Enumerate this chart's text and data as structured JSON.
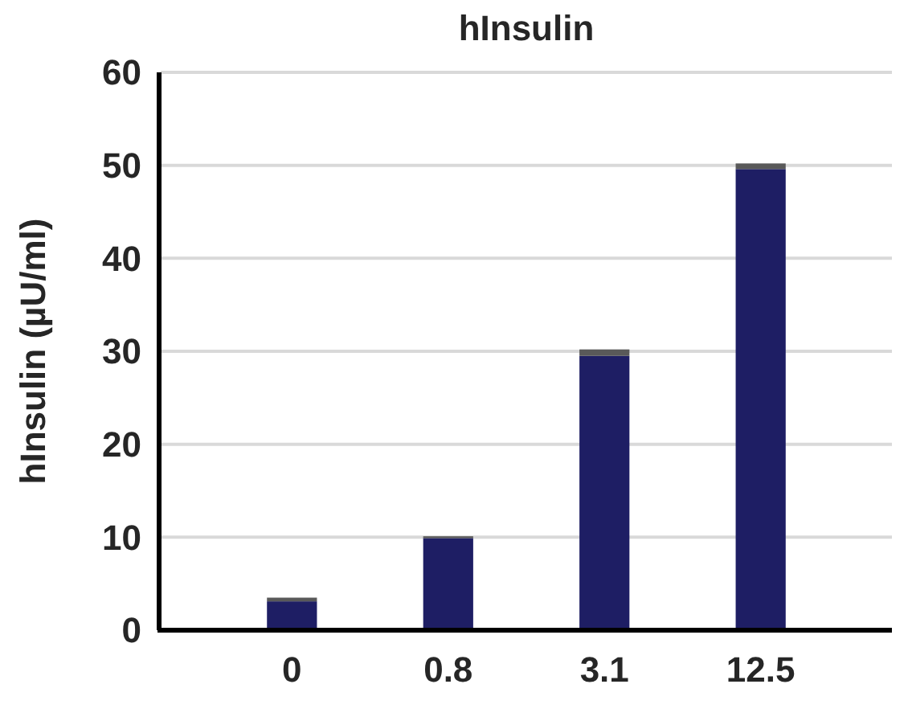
{
  "chart_data": {
    "type": "bar",
    "title": "hInsulin",
    "ylabel": "hInsulin (µU/ml)",
    "categories": [
      "0",
      "0.8",
      "3.1",
      "12.5"
    ],
    "stacked": true,
    "series": [
      {
        "color": "#1e1e64",
        "values": [
          3.1,
          9.9,
          29.5,
          49.6
        ]
      },
      {
        "color": "#595959",
        "values": [
          0.4,
          0.2,
          0.7,
          0.6
        ]
      }
    ],
    "ylim": [
      0,
      60
    ],
    "yticks": [
      0,
      10,
      20,
      30,
      40,
      50,
      60
    ],
    "grid": "y"
  }
}
